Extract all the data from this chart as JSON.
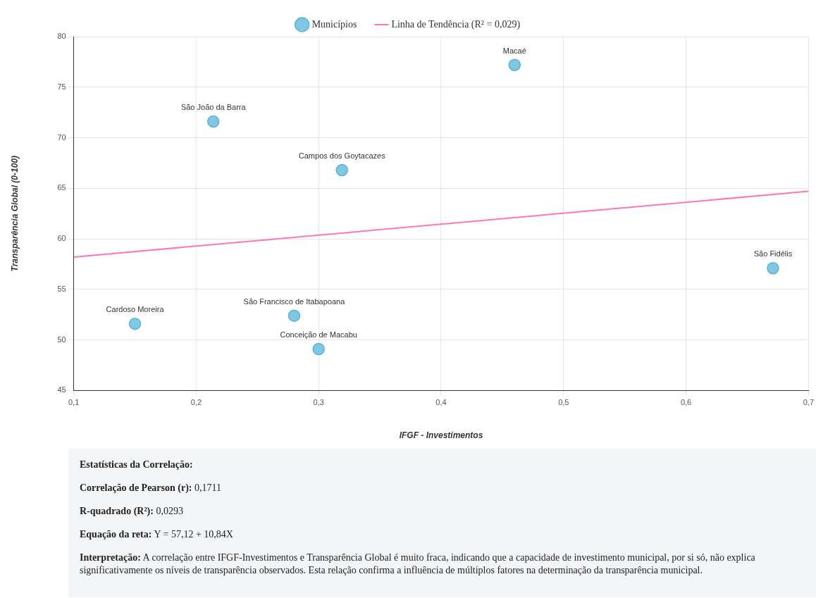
{
  "chart_data": {
    "type": "scatter",
    "xlabel": "IFGF - Investimentos",
    "ylabel": "Transparência Global (0-100)",
    "xlim": [
      0.1,
      0.7
    ],
    "xticks": [
      {
        "value": 0.1,
        "label": "0,1"
      },
      {
        "value": 0.2,
        "label": "0,2"
      },
      {
        "value": 0.3,
        "label": "0,3"
      },
      {
        "value": 0.4,
        "label": "0,4"
      },
      {
        "value": 0.5,
        "label": "0,5"
      },
      {
        "value": 0.6,
        "label": "0,6"
      },
      {
        "value": 0.7,
        "label": "0,7"
      }
    ],
    "ylim": [
      45,
      80
    ],
    "yticks": [
      45,
      50,
      55,
      60,
      65,
      70,
      75,
      80
    ],
    "grid": true,
    "legend": "top",
    "line_style": "solid",
    "series": [
      {
        "name": "Municípios",
        "marker": "circle",
        "color": "#7ec8e3",
        "x": [
          0.46,
          0.214,
          0.319,
          0.671,
          0.28,
          0.15,
          0.3
        ],
        "values": [
          77.2,
          71.6,
          66.8,
          57.1,
          52.4,
          51.6,
          49.1
        ]
      },
      {
        "name": "Linha de Tendência (R² = 0,029)",
        "type": "line",
        "color": "#ff77b4",
        "x": [
          0.1,
          0.7
        ],
        "values": [
          58.2,
          64.7
        ]
      }
    ],
    "annotations": [
      {
        "text": "Macaé",
        "x": 0.46,
        "y": 77.2
      },
      {
        "text": "São João da Barra",
        "x": 0.214,
        "y": 71.6
      },
      {
        "text": "Campos dos Goytacazes",
        "x": 0.319,
        "y": 66.8
      },
      {
        "text": "São Fidélis",
        "x": 0.671,
        "y": 57.1
      },
      {
        "text": "São Francisco de Itabapoana",
        "x": 0.28,
        "y": 52.4
      },
      {
        "text": "Cardoso Moreira",
        "x": 0.15,
        "y": 51.6
      },
      {
        "text": "Conceição de Macabu",
        "x": 0.3,
        "y": 49.1
      },
      "Estatísticas da Correlação:",
      "Correlação de Pearson (r): 0,1711",
      "R-quadrado (R²): 0,0293",
      "Equação da reta: Y = 57,12 + 10,84X",
      "Interpretação: A correlação entre IFGF-Investimentos e Transparência Global é muito fraca, indicando que a capacidade de investimento municipal, por si só, não explica significativamente os níveis de transparência observados. Esta relação confirma a influência de múltiplos fatores na determinação da transparência municipal."
    ]
  }
}
